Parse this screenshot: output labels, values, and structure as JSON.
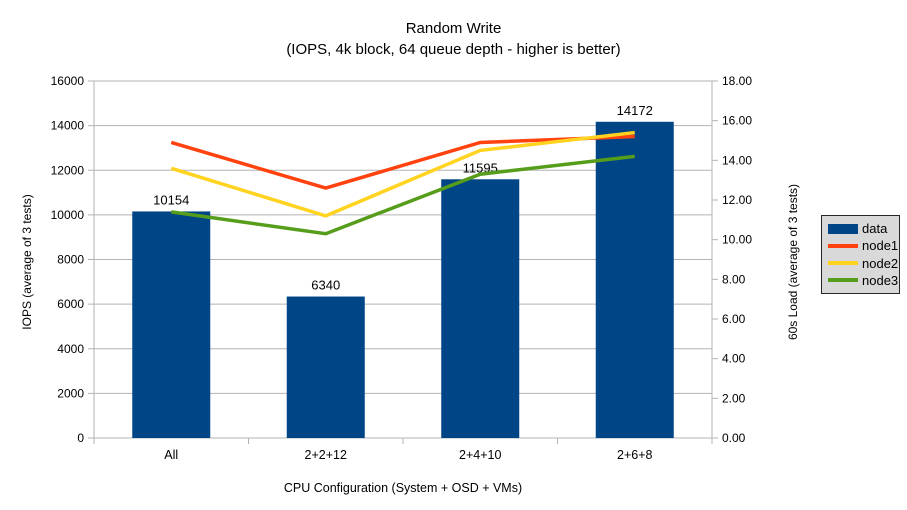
{
  "page": {
    "background_color": "#ffffff"
  },
  "chart_data": {
    "type": "bar+line",
    "title": "Random Write",
    "subtitle": "(IOPS, 4k block, 64 queue depth - higher is better)",
    "xlabel": "CPU Configuration (System + OSD + VMs)",
    "categories": [
      "All",
      "2+2+12",
      "2+4+10",
      "2+6+8"
    ],
    "bar_series": {
      "name": "data",
      "color": "#004586",
      "axis": "left",
      "values": [
        10154,
        6340,
        11595,
        14172
      ],
      "value_labels": [
        "10154",
        "6340",
        "11595",
        "14172"
      ]
    },
    "line_series": [
      {
        "name": "node1",
        "color": "#ff420e",
        "axis": "right",
        "values": [
          14.9,
          12.6,
          14.9,
          15.2
        ]
      },
      {
        "name": "node2",
        "color": "#ffd320",
        "axis": "right",
        "values": [
          13.6,
          11.2,
          14.5,
          15.4
        ]
      },
      {
        "name": "node3",
        "color": "#579d1c",
        "axis": "right",
        "values": [
          11.4,
          10.3,
          13.3,
          14.2
        ]
      }
    ],
    "left_axis": {
      "label": "IOPS (average of 3 tests)",
      "min": 0,
      "max": 16000,
      "step": 2000,
      "tick_labels": [
        "0",
        "2000",
        "4000",
        "6000",
        "8000",
        "10000",
        "12000",
        "14000",
        "16000"
      ]
    },
    "right_axis": {
      "label": "60s Load (average of 3 tests)",
      "min": 0,
      "max": 18,
      "step": 2,
      "tick_labels": [
        "0.00",
        "2.00",
        "4.00",
        "6.00",
        "8.00",
        "10.00",
        "12.00",
        "14.00",
        "16.00",
        "18.00"
      ]
    },
    "legend": {
      "position": "right",
      "background": "#d9d9d9",
      "border_color": "#262626",
      "entries": [
        {
          "label": "data",
          "color": "#004586",
          "swatch": "box"
        },
        {
          "label": "node1",
          "color": "#ff420e",
          "swatch": "line"
        },
        {
          "label": "node2",
          "color": "#ffd320",
          "swatch": "line"
        },
        {
          "label": "node3",
          "color": "#579d1c",
          "swatch": "line"
        }
      ]
    },
    "grid": {
      "horizontal": true,
      "color": "#b3b3b3"
    }
  }
}
